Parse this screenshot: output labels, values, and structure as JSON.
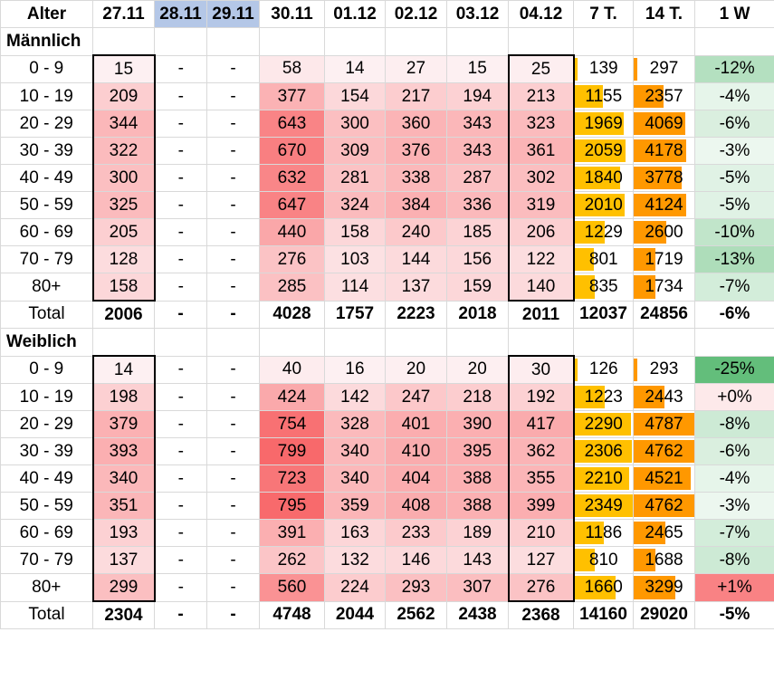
{
  "columns": [
    "Alter",
    "27.11",
    "28.11",
    "29.11",
    "30.11",
    "01.12",
    "02.12",
    "03.12",
    "04.12",
    "7 T.",
    "14 T.",
    "1 W"
  ],
  "colors": {
    "header_blue": "#b4c7e7",
    "bar7": "#ffc000",
    "bar14": "#ff9800",
    "green": "#63be7b",
    "red": "#f8696b"
  },
  "sections": [
    {
      "title": "Männlich",
      "rows": [
        {
          "age": "0 - 9",
          "v": [
            "15",
            "-",
            "-",
            "58",
            "14",
            "27",
            "15",
            "25",
            "139",
            "297",
            "-12%"
          ]
        },
        {
          "age": "10 - 19",
          "v": [
            "209",
            "-",
            "-",
            "377",
            "154",
            "217",
            "194",
            "213",
            "1155",
            "2357",
            "-4%"
          ]
        },
        {
          "age": "20 - 29",
          "v": [
            "344",
            "-",
            "-",
            "643",
            "300",
            "360",
            "343",
            "323",
            "1969",
            "4069",
            "-6%"
          ]
        },
        {
          "age": "30 - 39",
          "v": [
            "322",
            "-",
            "-",
            "670",
            "309",
            "376",
            "343",
            "361",
            "2059",
            "4178",
            "-3%"
          ]
        },
        {
          "age": "40 - 49",
          "v": [
            "300",
            "-",
            "-",
            "632",
            "281",
            "338",
            "287",
            "302",
            "1840",
            "3778",
            "-5%"
          ]
        },
        {
          "age": "50 - 59",
          "v": [
            "325",
            "-",
            "-",
            "647",
            "324",
            "384",
            "336",
            "319",
            "2010",
            "4124",
            "-5%"
          ]
        },
        {
          "age": "60 - 69",
          "v": [
            "205",
            "-",
            "-",
            "440",
            "158",
            "240",
            "185",
            "206",
            "1229",
            "2600",
            "-10%"
          ]
        },
        {
          "age": "70 - 79",
          "v": [
            "128",
            "-",
            "-",
            "276",
            "103",
            "144",
            "156",
            "122",
            "801",
            "1719",
            "-13%"
          ]
        },
        {
          "age": "80+",
          "v": [
            "158",
            "-",
            "-",
            "285",
            "114",
            "137",
            "159",
            "140",
            "835",
            "1734",
            "-7%"
          ]
        }
      ],
      "total": {
        "label": "Total",
        "v": [
          "2006",
          "-",
          "-",
          "4028",
          "1757",
          "2223",
          "2018",
          "2011",
          "12037",
          "24856",
          "-6%"
        ]
      }
    },
    {
      "title": "Weiblich",
      "rows": [
        {
          "age": "0 - 9",
          "v": [
            "14",
            "-",
            "-",
            "40",
            "16",
            "20",
            "20",
            "30",
            "126",
            "293",
            "-25%"
          ]
        },
        {
          "age": "10 - 19",
          "v": [
            "198",
            "-",
            "-",
            "424",
            "142",
            "247",
            "218",
            "192",
            "1223",
            "2443",
            "+0%"
          ]
        },
        {
          "age": "20 - 29",
          "v": [
            "379",
            "-",
            "-",
            "754",
            "328",
            "401",
            "390",
            "417",
            "2290",
            "4787",
            "-8%"
          ]
        },
        {
          "age": "30 - 39",
          "v": [
            "393",
            "-",
            "-",
            "799",
            "340",
            "410",
            "395",
            "362",
            "2306",
            "4762",
            "-6%"
          ]
        },
        {
          "age": "40 - 49",
          "v": [
            "340",
            "-",
            "-",
            "723",
            "340",
            "404",
            "388",
            "355",
            "2210",
            "4521",
            "-4%"
          ]
        },
        {
          "age": "50 - 59",
          "v": [
            "351",
            "-",
            "-",
            "795",
            "359",
            "408",
            "388",
            "399",
            "2349",
            "4762",
            "-3%"
          ]
        },
        {
          "age": "60 - 69",
          "v": [
            "193",
            "-",
            "-",
            "391",
            "163",
            "233",
            "189",
            "210",
            "1186",
            "2465",
            "-7%"
          ]
        },
        {
          "age": "70 - 79",
          "v": [
            "137",
            "-",
            "-",
            "262",
            "132",
            "146",
            "143",
            "127",
            "810",
            "1688",
            "-8%"
          ]
        },
        {
          "age": "80+",
          "v": [
            "299",
            "-",
            "-",
            "560",
            "224",
            "293",
            "307",
            "276",
            "1660",
            "3299",
            "+1%"
          ]
        }
      ],
      "total": {
        "label": "Total",
        "v": [
          "2304",
          "-",
          "-",
          "4748",
          "2044",
          "2562",
          "2438",
          "2368",
          "14160",
          "29020",
          "-5%"
        ]
      }
    }
  ]
}
